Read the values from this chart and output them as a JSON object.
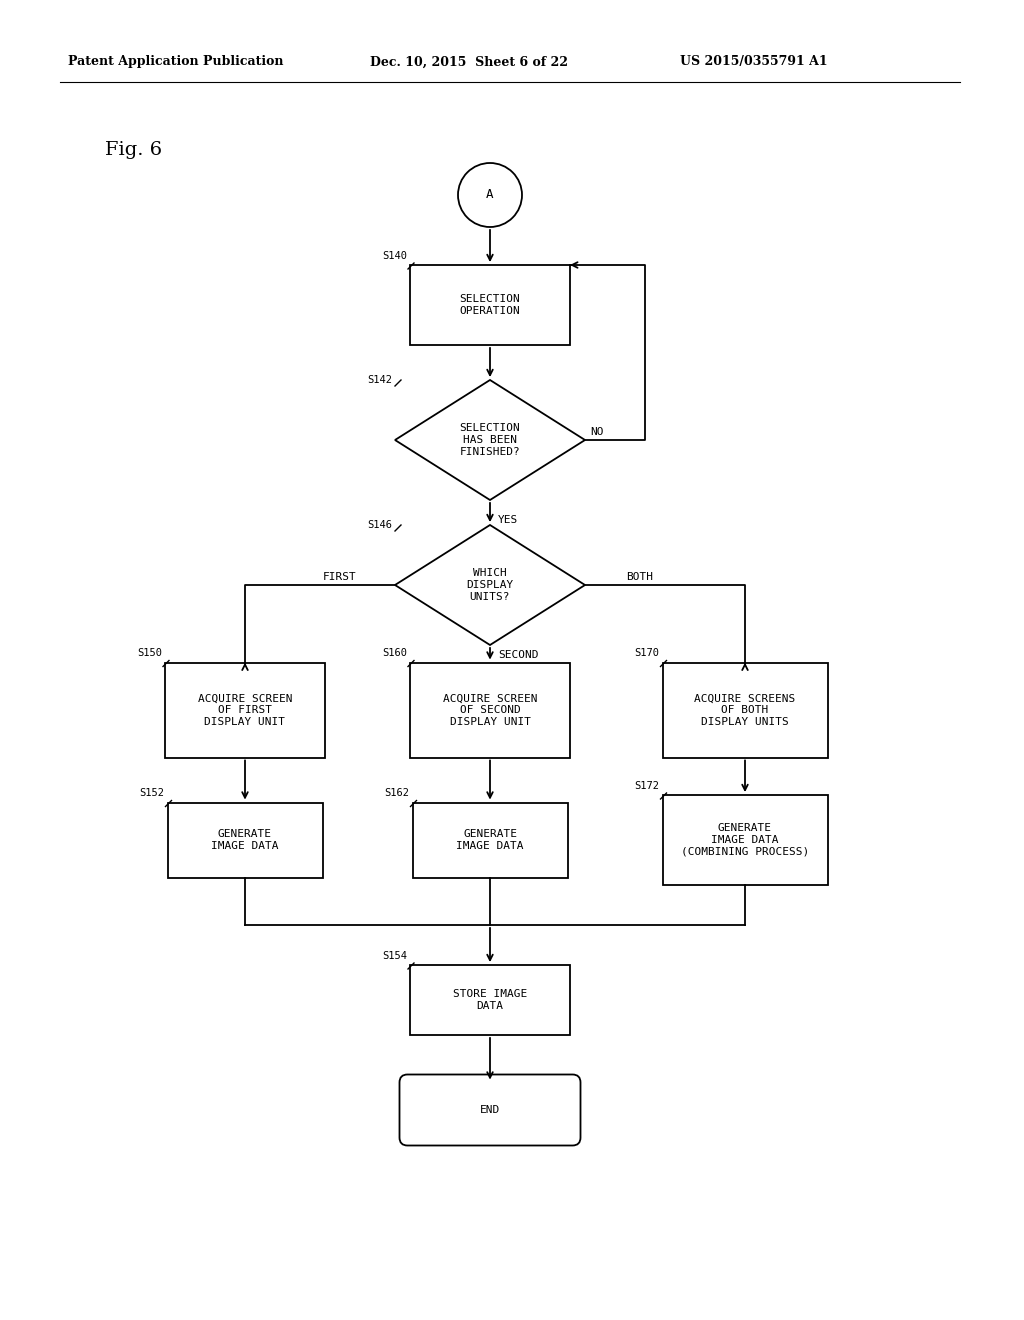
{
  "title_left": "Patent Application Publication",
  "title_mid": "Dec. 10, 2015  Sheet 6 of 22",
  "title_right": "US 2015/0355791 A1",
  "fig_label": "Fig. 6",
  "background_color": "#ffffff",
  "line_color": "#000000",
  "text_color": "#000000",
  "header_fontsize": 9,
  "body_fontsize": 8,
  "step_fontsize": 7.5,
  "label_fontsize": 7.5,
  "fig6_fontsize": 14
}
